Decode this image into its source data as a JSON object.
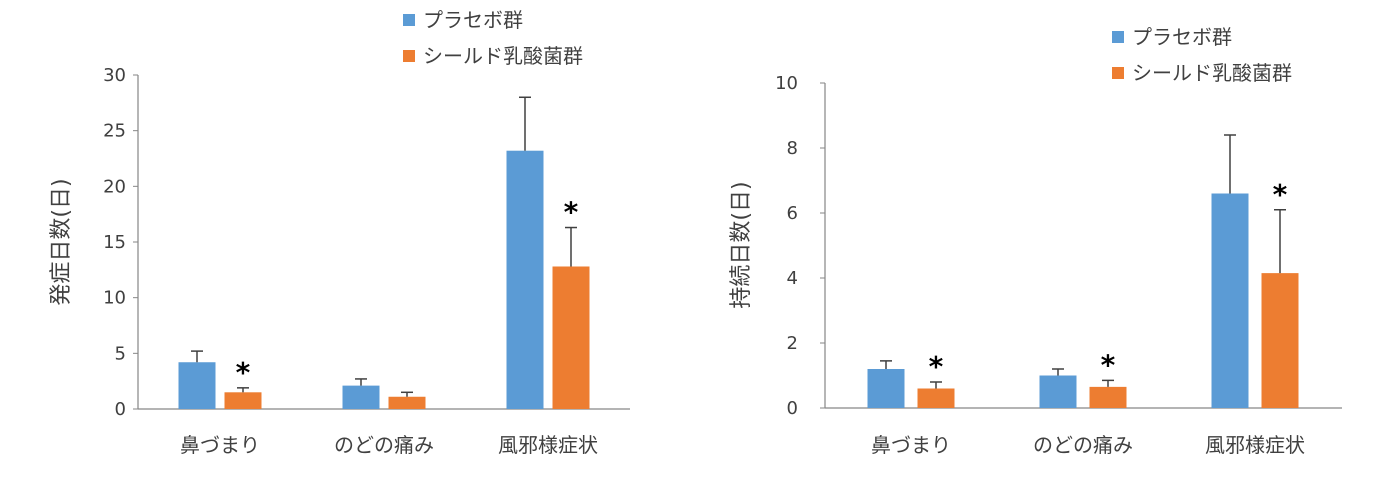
{
  "colors": {
    "placebo": "#5B9BD5",
    "shield": "#ED7D31",
    "axis": "#868686",
    "error_bar": "#404040",
    "text": "#404040"
  },
  "chart_data": [
    {
      "type": "bar",
      "title": "",
      "ylabel": "発症日数(日)",
      "xlabel": "",
      "ylim": [
        0,
        30
      ],
      "yticks": [
        0,
        5,
        10,
        15,
        20,
        25,
        30
      ],
      "categories": [
        "鼻づまり",
        "のどの痛み",
        "風邪様症状"
      ],
      "legend_position": "top-right",
      "series": [
        {
          "name": "プラセボ群",
          "color": "#5B9BD5",
          "values": [
            4.2,
            2.1,
            23.2
          ],
          "errors": [
            1.0,
            0.6,
            4.8
          ]
        },
        {
          "name": "シールド乳酸菌群",
          "color": "#ED7D31",
          "values": [
            1.5,
            1.1,
            12.8
          ],
          "errors": [
            0.4,
            0.4,
            3.5
          ]
        }
      ],
      "significance": [
        {
          "category_index": 0,
          "series_index": 1,
          "label": "*"
        },
        {
          "category_index": 2,
          "series_index": 1,
          "label": "*"
        }
      ]
    },
    {
      "type": "bar",
      "title": "",
      "ylabel": "持続日数(日)",
      "xlabel": "",
      "ylim": [
        0,
        10
      ],
      "yticks": [
        0,
        2,
        4,
        6,
        8,
        10
      ],
      "categories": [
        "鼻づまり",
        "のどの痛み",
        "風邪様症状"
      ],
      "legend_position": "top-right",
      "series": [
        {
          "name": "プラセボ群",
          "color": "#5B9BD5",
          "values": [
            1.2,
            1.0,
            6.6
          ],
          "errors": [
            0.25,
            0.2,
            1.8
          ]
        },
        {
          "name": "シールド乳酸菌群",
          "color": "#ED7D31",
          "values": [
            0.6,
            0.65,
            4.15
          ],
          "errors": [
            0.2,
            0.2,
            1.95
          ]
        }
      ],
      "significance": [
        {
          "category_index": 0,
          "series_index": 1,
          "label": "*"
        },
        {
          "category_index": 1,
          "series_index": 1,
          "label": "*"
        },
        {
          "category_index": 2,
          "series_index": 1,
          "label": "*"
        }
      ]
    }
  ]
}
